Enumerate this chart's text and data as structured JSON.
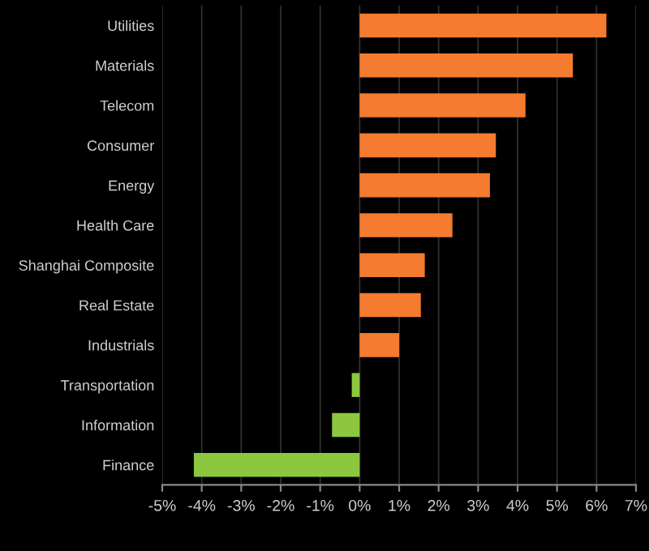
{
  "chart_data": {
    "type": "bar",
    "orientation": "horizontal",
    "categories": [
      "Utilities",
      "Materials",
      "Telecom",
      "Consumer",
      "Energy",
      "Health Care",
      "Shanghai Composite",
      "Real Estate",
      "Industrials",
      "Transportation",
      "Information",
      "Finance"
    ],
    "values": [
      6.25,
      5.4,
      4.2,
      3.45,
      3.3,
      2.35,
      1.65,
      1.55,
      1.0,
      -0.2,
      -0.7,
      -4.2
    ],
    "colors": [
      "#f47b2f",
      "#f47b2f",
      "#f47b2f",
      "#f47b2f",
      "#f47b2f",
      "#f47b2f",
      "#f47b2f",
      "#f47b2f",
      "#f47b2f",
      "#8dc63f",
      "#8dc63f",
      "#8dc63f"
    ],
    "xlim": [
      -5,
      7
    ],
    "xticks": [
      {
        "value": -5,
        "label": "-5%"
      },
      {
        "value": -4,
        "label": "-4%"
      },
      {
        "value": -3,
        "label": "-3%"
      },
      {
        "value": -2,
        "label": "-2%"
      },
      {
        "value": -1,
        "label": "-1%"
      },
      {
        "value": 0,
        "label": "0%"
      },
      {
        "value": 1,
        "label": "1%"
      },
      {
        "value": 2,
        "label": "2%"
      },
      {
        "value": 3,
        "label": "3%"
      },
      {
        "value": 4,
        "label": "4%"
      },
      {
        "value": 5,
        "label": "5%"
      },
      {
        "value": 6,
        "label": "6%"
      },
      {
        "value": 7,
        "label": "7%"
      }
    ],
    "grid": "x"
  }
}
